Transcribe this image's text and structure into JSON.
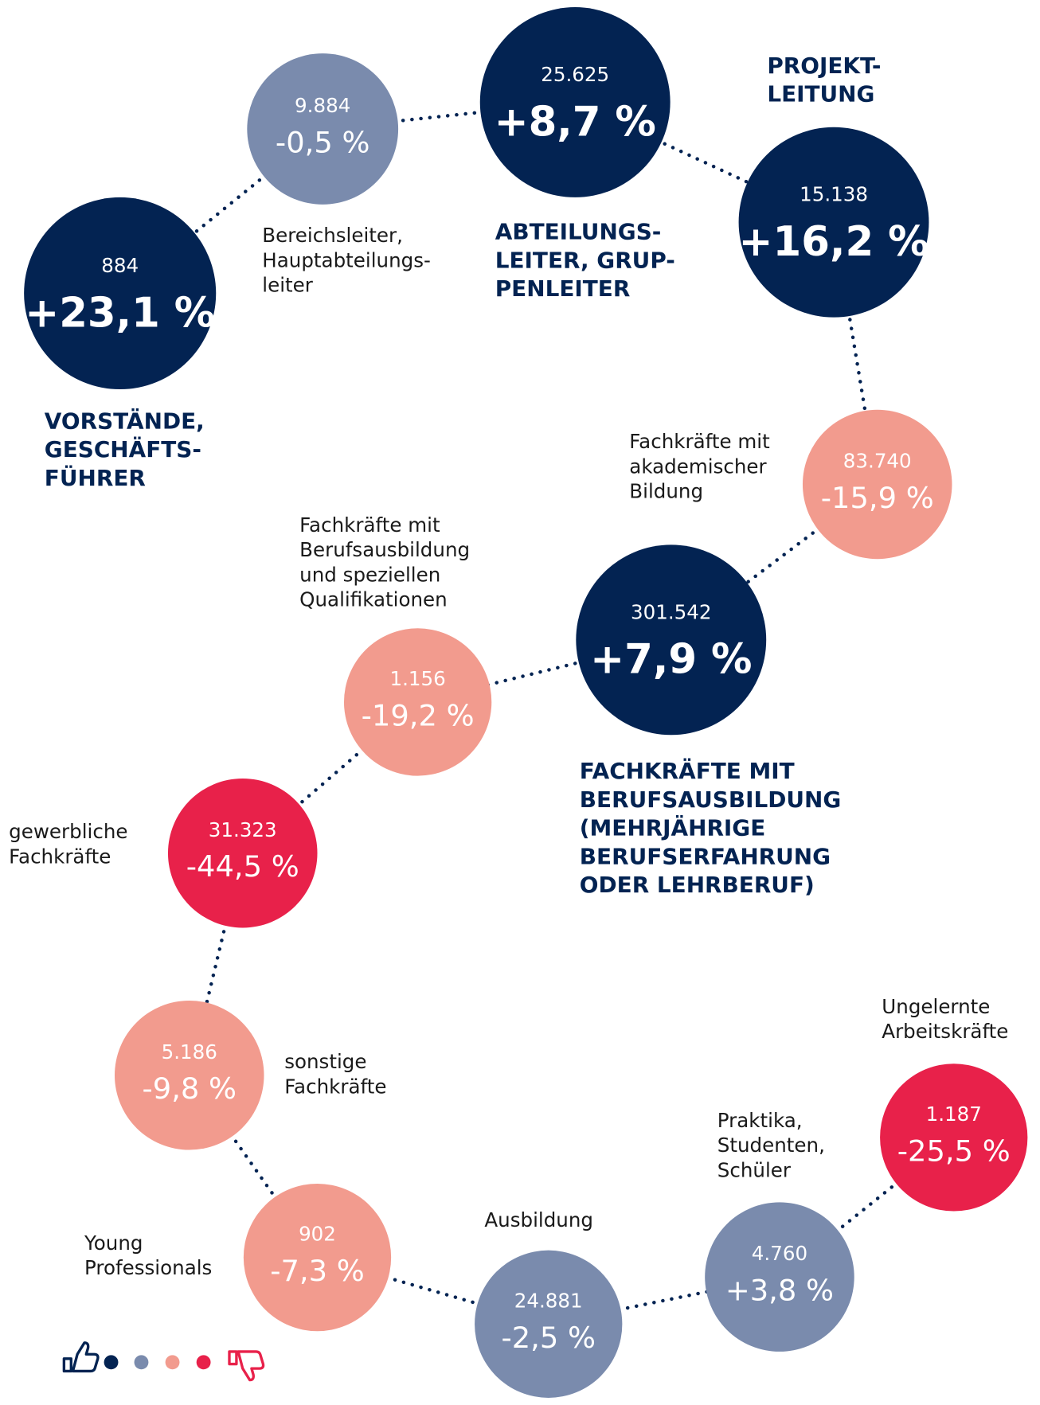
{
  "nodes": [
    {
      "count": "884",
      "change": "+23,1 %",
      "label": [
        "VORSTÄNDE,",
        "GESCHÄFTS-",
        "FÜHRER"
      ],
      "color": "#032352"
    },
    {
      "count": "9.884",
      "change": "-0,5 %",
      "label": [
        "Bereichsleiter,",
        "Hauptabteilungs-",
        "leiter"
      ],
      "color": "#7a8bad"
    },
    {
      "count": "25.625",
      "change": "+8,7 %",
      "label": [
        "ABTEILUNGS-",
        "LEITER, GRUP-",
        "PENLEITER"
      ],
      "color": "#032352"
    },
    {
      "count": "15.138",
      "change": "+16,2 %",
      "label": [
        "PROJEKT-",
        "LEITUNG"
      ],
      "color": "#032352"
    },
    {
      "count": "83.740",
      "change": "-15,9 %",
      "label": [
        "Fachkräfte mit",
        "akademischer",
        "Bildung"
      ],
      "color": "#f29b8e"
    },
    {
      "count": "301.542",
      "change": "+7,9 %",
      "label": [
        "FACHKRÄFTE MIT",
        "BERUFSAUSBILDUNG",
        "(MEHRJÄHRIGE",
        "BERUFSERFAHRUNG",
        "ODER LEHRBERUF)"
      ],
      "color": "#032352"
    },
    {
      "count": "1.156",
      "change": "-19,2 %",
      "label": [
        "Fachkräfte mit",
        "Berufsausbildung",
        "und speziellen",
        "Qualifikationen"
      ],
      "color": "#f29b8e"
    },
    {
      "count": "31.323",
      "change": "-44,5 %",
      "label": [
        "gewerbliche",
        "Fachkräfte"
      ],
      "color": "#e8214a"
    },
    {
      "count": "5.186",
      "change": "-9,8 %",
      "label": [
        "sonstige",
        "Fachkräfte"
      ],
      "color": "#f29b8e"
    },
    {
      "count": "902",
      "change": "-7,3 %",
      "label": [
        "Young",
        "Professionals"
      ],
      "color": "#f29b8e"
    },
    {
      "count": "24.881",
      "change": "-2,5 %",
      "label": [
        "Ausbildung"
      ],
      "color": "#7a8bad"
    },
    {
      "count": "4.760",
      "change": "+3,8 %",
      "label": [
        "Praktika,",
        "Studenten,",
        "Schüler"
      ],
      "color": "#7a8bad"
    },
    {
      "count": "1.187",
      "change": "-25,5 %",
      "label": [
        "Ungelernte",
        "Arbeitskräfte"
      ],
      "color": "#e8214a"
    }
  ]
}
